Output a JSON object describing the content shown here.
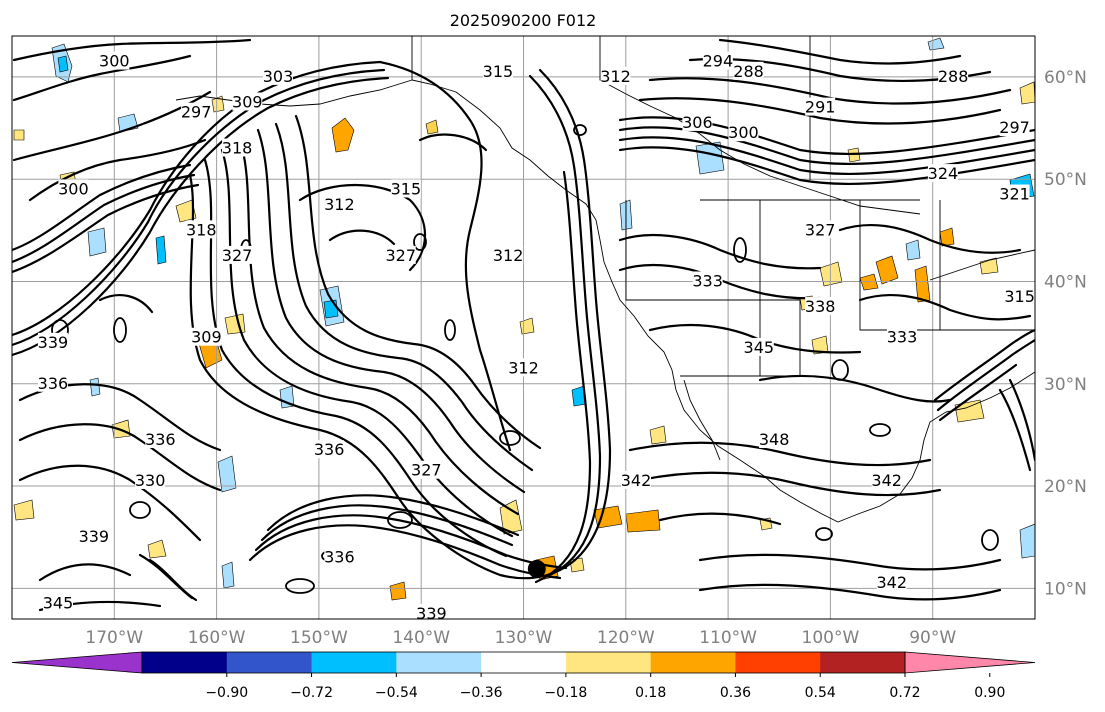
{
  "title": "2025090200 F012",
  "map": {
    "lon_range": [
      -180,
      -80
    ],
    "lat_range": [
      7,
      64
    ],
    "lat_ticks": [
      {
        "value": 60,
        "label": "60°N"
      },
      {
        "value": 50,
        "label": "50°N"
      },
      {
        "value": 40,
        "label": "40°N"
      },
      {
        "value": 30,
        "label": "30°N"
      },
      {
        "value": 20,
        "label": "20°N"
      },
      {
        "value": 10,
        "label": "10°N"
      }
    ],
    "lon_ticks": [
      {
        "value": -170,
        "label": "170°W"
      },
      {
        "value": -160,
        "label": "160°W"
      },
      {
        "value": -150,
        "label": "150°W"
      },
      {
        "value": -140,
        "label": "140°W"
      },
      {
        "value": -130,
        "label": "130°W"
      },
      {
        "value": -120,
        "label": "120°W"
      },
      {
        "value": -110,
        "label": "110°W"
      },
      {
        "value": -100,
        "label": "100°W"
      },
      {
        "value": -90,
        "label": "90°W"
      }
    ],
    "gridlines": true,
    "contour_labels": [
      {
        "text": "300",
        "lon": -170,
        "lat": 61.5
      },
      {
        "text": "303",
        "lon": -154,
        "lat": 60
      },
      {
        "text": "297",
        "lon": -162,
        "lat": 56.5
      },
      {
        "text": "309",
        "lon": -157,
        "lat": 57.5
      },
      {
        "text": "318",
        "lon": -158,
        "lat": 53
      },
      {
        "text": "315",
        "lon": -132.5,
        "lat": 60.5
      },
      {
        "text": "312",
        "lon": -121,
        "lat": 60
      },
      {
        "text": "294",
        "lon": -111,
        "lat": 61.5
      },
      {
        "text": "288",
        "lon": -108,
        "lat": 60.5
      },
      {
        "text": "288",
        "lon": -88,
        "lat": 60
      },
      {
        "text": "291",
        "lon": -101,
        "lat": 57
      },
      {
        "text": "306",
        "lon": -113,
        "lat": 55.5
      },
      {
        "text": "300",
        "lon": -108.5,
        "lat": 54.5
      },
      {
        "text": "297",
        "lon": -82,
        "lat": 55
      },
      {
        "text": "324",
        "lon": -89,
        "lat": 50.5
      },
      {
        "text": "315",
        "lon": -141.5,
        "lat": 49
      },
      {
        "text": "312",
        "lon": -148,
        "lat": 47.5
      },
      {
        "text": "300",
        "lon": -174,
        "lat": 49
      },
      {
        "text": "321",
        "lon": -82,
        "lat": 48.5
      },
      {
        "text": "318",
        "lon": -161.5,
        "lat": 45
      },
      {
        "text": "327",
        "lon": -158,
        "lat": 42.5
      },
      {
        "text": "327",
        "lon": -142,
        "lat": 42.5
      },
      {
        "text": "312",
        "lon": -131.5,
        "lat": 42.5
      },
      {
        "text": "327",
        "lon": -101,
        "lat": 45
      },
      {
        "text": "333",
        "lon": -112,
        "lat": 40
      },
      {
        "text": "338",
        "lon": -101,
        "lat": 37.5
      },
      {
        "text": "315",
        "lon": -81.5,
        "lat": 38.5
      },
      {
        "text": "345",
        "lon": -107,
        "lat": 33.5
      },
      {
        "text": "309",
        "lon": -161,
        "lat": 34.5
      },
      {
        "text": "333",
        "lon": -93,
        "lat": 34.5
      },
      {
        "text": "339",
        "lon": -176,
        "lat": 34
      },
      {
        "text": "312",
        "lon": -130,
        "lat": 31.5
      },
      {
        "text": "336",
        "lon": -176,
        "lat": 30
      },
      {
        "text": "336",
        "lon": -149,
        "lat": 23.5
      },
      {
        "text": "336",
        "lon": -165.5,
        "lat": 24.5
      },
      {
        "text": "348",
        "lon": -105.5,
        "lat": 24.5
      },
      {
        "text": "330",
        "lon": -166.5,
        "lat": 20.5
      },
      {
        "text": "327",
        "lon": -139.5,
        "lat": 21.5
      },
      {
        "text": "342",
        "lon": -119,
        "lat": 20.5
      },
      {
        "text": "342",
        "lon": -94.5,
        "lat": 20.5
      },
      {
        "text": "339",
        "lon": -172,
        "lat": 15
      },
      {
        "text": "336",
        "lon": -148,
        "lat": 13
      },
      {
        "text": "339",
        "lon": -139,
        "lat": 7.5
      },
      {
        "text": "345",
        "lon": -175.5,
        "lat": 8.5
      },
      {
        "text": "342",
        "lon": -94,
        "lat": 10.5
      }
    ],
    "marker": {
      "lon": -128.7,
      "lat": 11.9
    }
  },
  "colorbar": {
    "colors": [
      "#9933cc",
      "#00008b",
      "#3355cc",
      "#00bfff",
      "#aadfff",
      "#ffffff",
      "#ffe680",
      "#ffa500",
      "#ff4000",
      "#b22222",
      "#ff88aa"
    ],
    "ticks": [
      "−0.90",
      "−0.72",
      "−0.54",
      "−0.36",
      "−0.18",
      "0.18",
      "0.36",
      "0.54",
      "0.72",
      "0.90"
    ]
  }
}
